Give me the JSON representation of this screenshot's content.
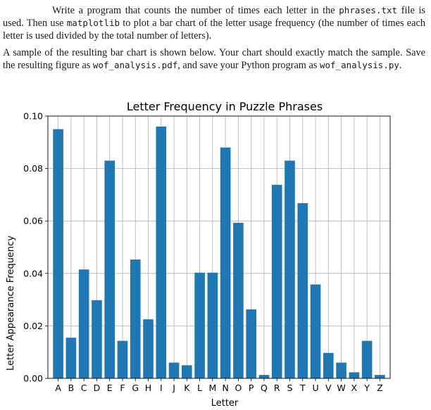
{
  "document": {
    "para1": [
      {
        "t": "Write a program that counts the number of times each letter in the "
      },
      {
        "t": "phrases.txt",
        "code": true
      },
      {
        "t": " file is used.  Then use "
      },
      {
        "t": "matplotlib",
        "code": true
      },
      {
        "t": " to plot a bar chart of the letter usage frequency (the number of times each letter is used divided by the total number of letters)."
      }
    ],
    "para2": [
      {
        "t": "A sample of the resulting bar chart is shown below.  Your chart should exactly match the sample.  Save the resulting figure as "
      },
      {
        "t": "wof_analysis.pdf",
        "code": true
      },
      {
        "t": ", and save your Python program as "
      },
      {
        "t": "wof_analysis.py",
        "code": true
      },
      {
        "t": "."
      }
    ]
  },
  "chart_data": {
    "type": "bar",
    "title": "Letter Frequency in Puzzle Phrases",
    "xlabel": "Letter",
    "ylabel": "Letter Appearance Frequency",
    "ylim": [
      0.0,
      0.1
    ],
    "yticks": [
      "0.00",
      "0.02",
      "0.04",
      "0.06",
      "0.08",
      "0.10"
    ],
    "grid": true,
    "bar_color": "#1f77b4",
    "categories": [
      "A",
      "B",
      "C",
      "D",
      "E",
      "F",
      "G",
      "H",
      "I",
      "J",
      "K",
      "L",
      "M",
      "N",
      "O",
      "P",
      "Q",
      "R",
      "S",
      "T",
      "U",
      "V",
      "W",
      "X",
      "Y",
      "Z"
    ],
    "values": [
      0.095,
      0.0155,
      0.0415,
      0.0298,
      0.083,
      0.0143,
      0.0453,
      0.0225,
      0.096,
      0.006,
      0.005,
      0.0403,
      0.0403,
      0.088,
      0.0593,
      0.0263,
      0.0013,
      0.0738,
      0.083,
      0.0668,
      0.0358,
      0.0097,
      0.006,
      0.0023,
      0.0143,
      0.0013
    ]
  }
}
